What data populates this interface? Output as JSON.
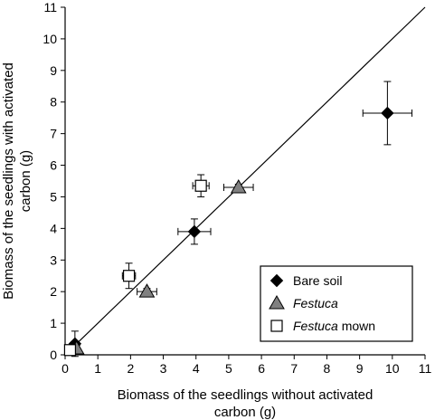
{
  "chart_data": {
    "type": "scatter",
    "xlabel": [
      "Biomass of the seedlings without activated",
      "carbon (g)"
    ],
    "ylabel": [
      "Biomass of the seedlings with activated",
      "carbon (g)"
    ],
    "xlim": [
      0,
      11
    ],
    "ylim": [
      0,
      11
    ],
    "xticks": [
      "0",
      "1",
      "2",
      "3",
      "4",
      "5",
      "6",
      "7",
      "8",
      "9",
      "10",
      "11"
    ],
    "yticks": [
      "0",
      "1",
      "2",
      "3",
      "4",
      "5",
      "6",
      "7",
      "8",
      "9",
      "10",
      "11"
    ],
    "grid": false,
    "reference_line": {
      "from": [
        0,
        0
      ],
      "to": [
        11,
        11
      ]
    },
    "legend_position": "bottom-right",
    "series": [
      {
        "name": "Bare soil",
        "label_parts": [
          {
            "text": "Bare soil",
            "italic": false
          }
        ],
        "marker": "diamond",
        "fill": "#000000",
        "points": [
          {
            "x": 0.3,
            "y": 0.35,
            "xerr": 0.05,
            "yerr": 0.4
          },
          {
            "x": 3.95,
            "y": 3.9,
            "xerr": 0.5,
            "yerr": 0.4
          },
          {
            "x": 9.85,
            "y": 7.65,
            "xerr": 0.75,
            "yerr": 1.0
          }
        ]
      },
      {
        "name": "Festuca",
        "label_parts": [
          {
            "text": "Festuca",
            "italic": true
          }
        ],
        "marker": "triangle",
        "fill": "#808080",
        "points": [
          {
            "x": 0.35,
            "y": 0.2,
            "xerr": 0.05,
            "yerr": 0.1
          },
          {
            "x": 2.5,
            "y": 2.0,
            "xerr": 0.3,
            "yerr": 0.1
          },
          {
            "x": 5.3,
            "y": 5.3,
            "xerr": 0.45,
            "yerr": 0.1
          }
        ]
      },
      {
        "name": "Festuca mown",
        "label_parts": [
          {
            "text": "Festuca",
            "italic": true
          },
          {
            "text": " mown",
            "italic": false
          }
        ],
        "marker": "square",
        "fill": "#ffffff",
        "points": [
          {
            "x": 0.15,
            "y": 0.15,
            "xerr": 0.05,
            "yerr": 0.05
          },
          {
            "x": 1.95,
            "y": 2.5,
            "xerr": 0.2,
            "yerr": 0.4
          },
          {
            "x": 4.15,
            "y": 5.35,
            "xerr": 0.25,
            "yerr": 0.35
          }
        ]
      }
    ]
  }
}
